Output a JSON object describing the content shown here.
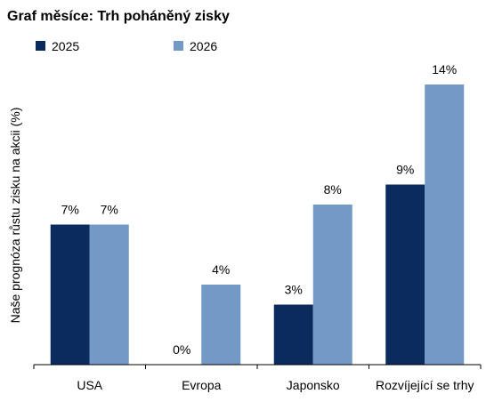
{
  "chart_data": {
    "type": "bar",
    "title": "Graf měsíce: Trh poháněný zisky",
    "ylabel": "Naše prognóza růstu zisku na akcii (%)",
    "xlabel": "",
    "categories": [
      "USA",
      "Evropa",
      "Japonsko",
      "Rozvíjející se trhy"
    ],
    "series": [
      {
        "name": "2025",
        "color": "#0b2a5e",
        "values": [
          7,
          0,
          3,
          9
        ],
        "labels": [
          "7%",
          "0%",
          "3%",
          "9%"
        ]
      },
      {
        "name": "2026",
        "color": "#7399c6",
        "values": [
          7,
          4,
          8,
          14
        ],
        "labels": [
          "7%",
          "4%",
          "8%",
          "14%"
        ]
      }
    ],
    "ylim": [
      0,
      14
    ],
    "grid": false,
    "legend_position": "top-left"
  }
}
